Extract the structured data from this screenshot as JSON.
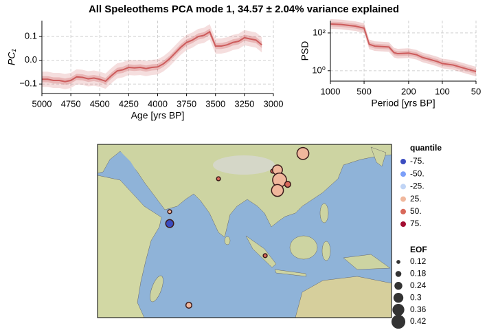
{
  "title": "All Speleothems PCA mode 1, 34.57 ± 2.04% variance explained",
  "chart_data": [
    {
      "type": "line",
      "xlabel": "Age [yrs BP]",
      "ylabel": "PC₁",
      "x": [
        5000,
        4950,
        4900,
        4850,
        4800,
        4750,
        4700,
        4650,
        4600,
        4550,
        4500,
        4450,
        4400,
        4350,
        4300,
        4250,
        4200,
        4150,
        4100,
        4050,
        4000,
        3950,
        3900,
        3850,
        3800,
        3750,
        3700,
        3650,
        3600,
        3550,
        3500,
        3450,
        3400,
        3350,
        3300,
        3250,
        3200,
        3150,
        3100
      ],
      "values": [
        -0.08,
        -0.08,
        -0.085,
        -0.085,
        -0.09,
        -0.085,
        -0.07,
        -0.072,
        -0.078,
        -0.075,
        -0.08,
        -0.088,
        -0.065,
        -0.045,
        -0.04,
        -0.03,
        -0.032,
        -0.03,
        -0.035,
        -0.03,
        -0.028,
        -0.015,
        0.005,
        0.03,
        0.055,
        0.075,
        0.085,
        0.1,
        0.105,
        0.12,
        0.06,
        0.06,
        0.065,
        0.075,
        0.08,
        0.095,
        0.09,
        0.085,
        0.065
      ],
      "error_inner": 0.013,
      "error_outer": 0.032,
      "color": "#cd5c5c",
      "xlim": [
        5000,
        3000
      ],
      "ylim": [
        -0.14,
        0.167
      ],
      "xticks": [
        5000,
        4750,
        4500,
        4250,
        4000,
        3750,
        3500,
        3250,
        3000
      ],
      "yticks": [
        {
          "value": -0.1,
          "label": "−0.1"
        },
        {
          "value": 0,
          "label": "0.0"
        },
        0.1
      ],
      "grid": true
    },
    {
      "type": "line",
      "xlabel": "Period [yrs BP]",
      "ylabel": "PSD",
      "x": [
        1000,
        800,
        600,
        500,
        450,
        400,
        300,
        270,
        250,
        200,
        170,
        150,
        130,
        110,
        100,
        80,
        65,
        50
      ],
      "values": [
        300,
        280,
        230,
        180,
        25,
        20,
        18,
        9,
        8,
        8.5,
        7,
        5,
        4,
        3,
        2.4,
        2,
        1.4,
        0.9
      ],
      "error_factor": 1.8,
      "color": "#cd5c5c",
      "xscale": "log",
      "yscale": "log",
      "xlim": [
        1000,
        50
      ],
      "ylim": [
        0.28,
        450
      ],
      "xticks": [
        1000,
        500,
        200,
        100,
        50
      ],
      "yticks": [
        {
          "value": 1,
          "label": "10⁰"
        },
        {
          "value": 100,
          "label": "10²"
        }
      ],
      "grid": true
    },
    {
      "type": "map",
      "xlim": [
        20,
        161
      ],
      "ylim": [
        -25,
        43.5
      ],
      "lon": [
        118.5,
        104,
        106.3,
        107.3,
        111.2,
        106.3,
        78,
        54.6,
        54.6,
        100.4,
        63.8
      ],
      "lat": [
        39.9,
        32.9,
        33.4,
        29.4,
        27.7,
        25.3,
        29.9,
        16.9,
        12.2,
        -0.5,
        -20.1
      ],
      "eof": [
        0.36,
        0.12,
        0.3,
        0.42,
        0.18,
        0.36,
        0.12,
        0.12,
        0.24,
        0.12,
        0.18
      ],
      "colors": [
        "#f0b79c",
        "#d8685a",
        "#f0b79c",
        "#f0b79c",
        "#d8685a",
        "#f0b79c",
        "#d8685a",
        "#f0b79c",
        "#3b4cc0",
        "#d8685a",
        "#f0b79c"
      ],
      "quantile_title": "quantile",
      "quantile_labels": [
        "-75.",
        "-50.",
        "-25.",
        "25.",
        "50.",
        "75."
      ],
      "quantile_colors": [
        "#3b4cc0",
        "#7b9ff9",
        "#c0d4f5",
        "#f0b79c",
        "#d8685a",
        "#a30d31"
      ],
      "eof_title": "EOF",
      "eof_legend": [
        0.12,
        0.18,
        0.24,
        0.3,
        0.36,
        0.42
      ]
    }
  ]
}
